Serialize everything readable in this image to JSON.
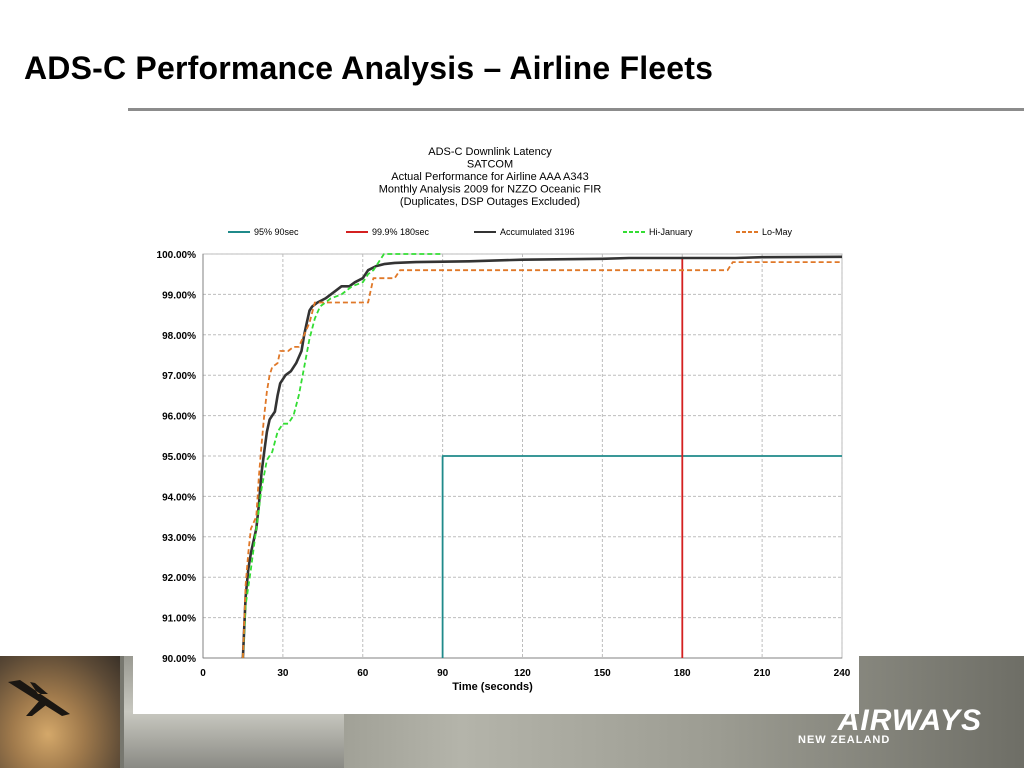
{
  "slide": {
    "title": "ADS-C Performance Analysis – Airline Fleets"
  },
  "logo": {
    "word": "AIRWAYS",
    "sub": "NEW ZEALAND"
  },
  "chart_data": {
    "type": "line",
    "title_lines": [
      "ADS-C  Downlink Latency",
      "SATCOM",
      "Actual Performance  for Airline AAA  A343",
      "Monthly Analysis 2009 for  NZZO Oceanic FIR",
      "(Duplicates, DSP Outages Excluded)"
    ],
    "xlabel": "Time (seconds)",
    "ylabel": "",
    "xlim": [
      0,
      240
    ],
    "ylim": [
      90,
      100
    ],
    "x_ticks": [
      0,
      30,
      60,
      90,
      120,
      150,
      180,
      210,
      240
    ],
    "x_tick_labels": [
      "0",
      "30",
      "60",
      "90",
      "120",
      "150",
      "180",
      "210",
      "240"
    ],
    "y_ticks": [
      90,
      91,
      92,
      93,
      94,
      95,
      96,
      97,
      98,
      99,
      100
    ],
    "y_tick_labels": [
      "90.00%",
      "91.00%",
      "92.00%",
      "93.00%",
      "94.00%",
      "95.00%",
      "96.00%",
      "97.00%",
      "98.00%",
      "99.00%",
      "100.00%"
    ],
    "grid": true,
    "legend_position": "top",
    "series": [
      {
        "name": "95% 90sec",
        "color": "#1f8a8a",
        "style": "solid",
        "points": [
          [
            90,
            90
          ],
          [
            90,
            95
          ],
          [
            240,
            95
          ]
        ]
      },
      {
        "name": "99.9% 180sec",
        "color": "#d42020",
        "style": "solid",
        "points": [
          [
            180,
            90
          ],
          [
            180,
            99.9
          ]
        ]
      },
      {
        "name": "Accumulated 3196",
        "color": "#333333",
        "style": "solid",
        "points": [
          [
            15,
            90
          ],
          [
            16,
            91.5
          ],
          [
            17,
            92.2
          ],
          [
            18,
            92.6
          ],
          [
            19,
            92.9
          ],
          [
            20,
            93.2
          ],
          [
            21,
            93.8
          ],
          [
            22,
            94.6
          ],
          [
            23,
            95.1
          ],
          [
            24,
            95.6
          ],
          [
            25,
            95.9
          ],
          [
            26,
            96.0
          ],
          [
            27,
            96.1
          ],
          [
            28,
            96.5
          ],
          [
            29,
            96.8
          ],
          [
            30,
            96.9
          ],
          [
            31,
            97.0
          ],
          [
            33,
            97.1
          ],
          [
            35,
            97.3
          ],
          [
            37,
            97.6
          ],
          [
            38,
            98.0
          ],
          [
            39,
            98.3
          ],
          [
            40,
            98.6
          ],
          [
            41,
            98.7
          ],
          [
            43,
            98.8
          ],
          [
            46,
            98.9
          ],
          [
            48,
            99.0
          ],
          [
            50,
            99.1
          ],
          [
            52,
            99.2
          ],
          [
            55,
            99.2
          ],
          [
            57,
            99.3
          ],
          [
            60,
            99.4
          ],
          [
            62,
            99.6
          ],
          [
            65,
            99.7
          ],
          [
            68,
            99.75
          ],
          [
            72,
            99.78
          ],
          [
            80,
            99.8
          ],
          [
            100,
            99.82
          ],
          [
            120,
            99.86
          ],
          [
            150,
            99.88
          ],
          [
            160,
            99.9
          ],
          [
            200,
            99.9
          ],
          [
            210,
            99.92
          ],
          [
            240,
            99.93
          ]
        ]
      },
      {
        "name": "Hi-January",
        "color": "#33dd33",
        "style": "dashed",
        "points": [
          [
            15,
            90
          ],
          [
            16,
            91.3
          ],
          [
            18,
            92.2
          ],
          [
            20,
            93.2
          ],
          [
            22,
            94.2
          ],
          [
            24,
            94.9
          ],
          [
            26,
            95.1
          ],
          [
            28,
            95.6
          ],
          [
            30,
            95.8
          ],
          [
            32,
            95.8
          ],
          [
            34,
            96.0
          ],
          [
            36,
            96.5
          ],
          [
            38,
            97.2
          ],
          [
            40,
            97.9
          ],
          [
            42,
            98.4
          ],
          [
            44,
            98.7
          ],
          [
            48,
            98.9
          ],
          [
            52,
            99.0
          ],
          [
            56,
            99.2
          ],
          [
            60,
            99.3
          ],
          [
            62,
            99.5
          ],
          [
            64,
            99.6
          ],
          [
            66,
            99.8
          ],
          [
            68,
            100.0
          ],
          [
            90,
            100.0
          ]
        ]
      },
      {
        "name": "Lo-May",
        "color": "#e07828",
        "style": "dashed",
        "points": [
          [
            15,
            90
          ],
          [
            16,
            91.8
          ],
          [
            17,
            92.6
          ],
          [
            18,
            93.2
          ],
          [
            20,
            93.5
          ],
          [
            21,
            94.5
          ],
          [
            22,
            95.3
          ],
          [
            23,
            96.0
          ],
          [
            24,
            96.6
          ],
          [
            25,
            97.0
          ],
          [
            26,
            97.2
          ],
          [
            28,
            97.3
          ],
          [
            29,
            97.6
          ],
          [
            32,
            97.6
          ],
          [
            34,
            97.7
          ],
          [
            36,
            97.7
          ],
          [
            38,
            98.0
          ],
          [
            40,
            98.3
          ],
          [
            42,
            98.8
          ],
          [
            62,
            98.8
          ],
          [
            64,
            99.4
          ],
          [
            72,
            99.4
          ],
          [
            74,
            99.6
          ],
          [
            197,
            99.6
          ],
          [
            199,
            99.8
          ],
          [
            240,
            99.8
          ]
        ]
      }
    ]
  }
}
